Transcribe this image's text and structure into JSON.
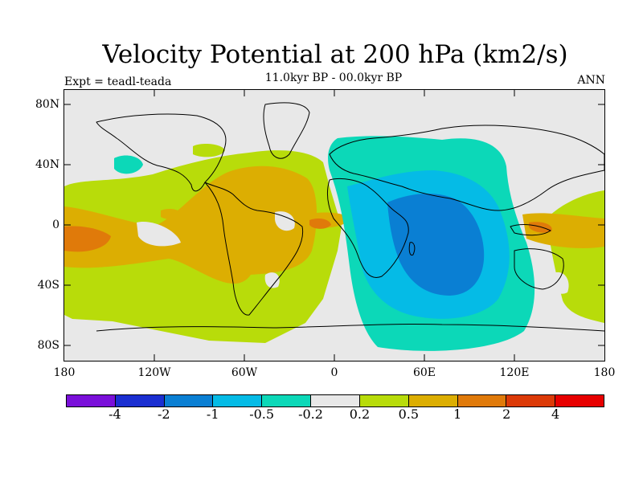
{
  "title": "Velocity Potential at 200 hPa (km2/s)",
  "subtitle": "11.0kyr BP - 00.0kyr BP",
  "left_label": "Expt = teadl-teada",
  "right_label": "ANN",
  "map": {
    "background_color": "#e8e8e8",
    "lat_labels": [
      "80N",
      "40N",
      "0",
      "40S",
      "80S"
    ],
    "lon_labels": [
      "180",
      "120W",
      "60W",
      "0",
      "60E",
      "120E",
      "180"
    ]
  },
  "colorbar": {
    "colors": [
      "#7a10d9",
      "#1b2fd1",
      "#0a7fd3",
      "#05bbe6",
      "#0cd8b8",
      "#e8e8e8",
      "#b8dc0a",
      "#dcae02",
      "#e07a0a",
      "#dc3a08",
      "#e70000"
    ],
    "labels": [
      "-4",
      "-2",
      "-1",
      "-0.5",
      "-0.2",
      "0.2",
      "0.5",
      "1",
      "2",
      "4"
    ]
  }
}
